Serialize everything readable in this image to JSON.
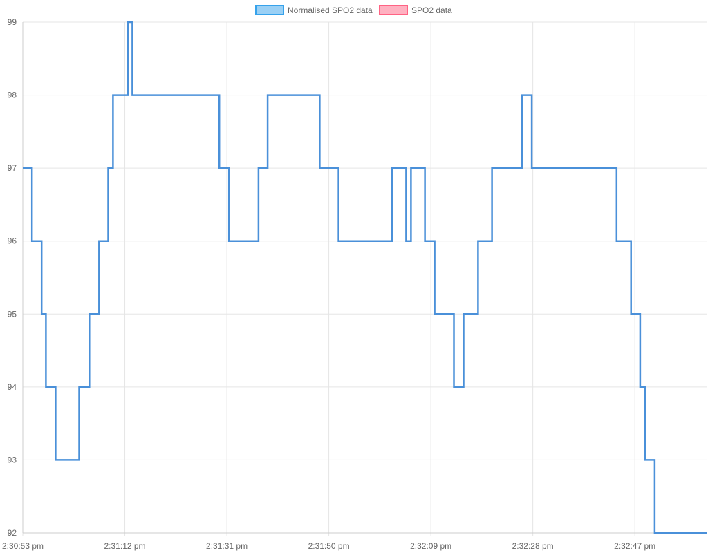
{
  "chart_data": {
    "type": "line",
    "title": "",
    "xlabel": "",
    "ylabel": "",
    "legend_position": "top-center",
    "legend": [
      {
        "label": "Normalised SPO2 data",
        "fill": "#9ad0f5",
        "stroke": "#36a2eb"
      },
      {
        "label": "SPO2 data",
        "fill": "#ffb1c1",
        "stroke": "#ff6384"
      }
    ],
    "x_tick_labels": [
      "2:30:53 pm",
      "2:31:12 pm",
      "2:31:31 pm",
      "2:31:50 pm",
      "2:32:09 pm",
      "2:32:28 pm",
      "2:32:47 pm"
    ],
    "x_tick_seconds": [
      0,
      19,
      38,
      57,
      76,
      95,
      114
    ],
    "xlim_seconds": [
      0,
      127.5
    ],
    "ylim": [
      92,
      99
    ],
    "y_ticks": [
      "92",
      "93",
      "94",
      "95",
      "96",
      "97",
      "98",
      "99"
    ],
    "grid": true,
    "stepped": true,
    "series": [
      {
        "name": "Normalised SPO2 data",
        "color": "#4a90d9",
        "points": [
          [
            0.0,
            97
          ],
          [
            1.7,
            96
          ],
          [
            3.5,
            95
          ],
          [
            4.3,
            94
          ],
          [
            6.1,
            93
          ],
          [
            10.5,
            94
          ],
          [
            12.4,
            95
          ],
          [
            14.2,
            96
          ],
          [
            15.9,
            97
          ],
          [
            16.8,
            98
          ],
          [
            19.6,
            99
          ],
          [
            20.4,
            98
          ],
          [
            36.6,
            97
          ],
          [
            38.4,
            96
          ],
          [
            43.9,
            97
          ],
          [
            45.6,
            98
          ],
          [
            55.3,
            97
          ],
          [
            58.8,
            96
          ],
          [
            68.8,
            97
          ],
          [
            71.4,
            96
          ],
          [
            72.3,
            97
          ],
          [
            74.9,
            96
          ],
          [
            76.7,
            95
          ],
          [
            80.3,
            94
          ],
          [
            82.1,
            95
          ],
          [
            84.8,
            96
          ],
          [
            87.4,
            97
          ],
          [
            93.0,
            98
          ],
          [
            94.8,
            97
          ],
          [
            110.6,
            96
          ],
          [
            113.3,
            95
          ],
          [
            115.0,
            94
          ],
          [
            115.9,
            93
          ],
          [
            117.7,
            92
          ],
          [
            127.5,
            92
          ]
        ]
      },
      {
        "name": "SPO2 data",
        "color": "#ff6384",
        "points": []
      }
    ]
  }
}
